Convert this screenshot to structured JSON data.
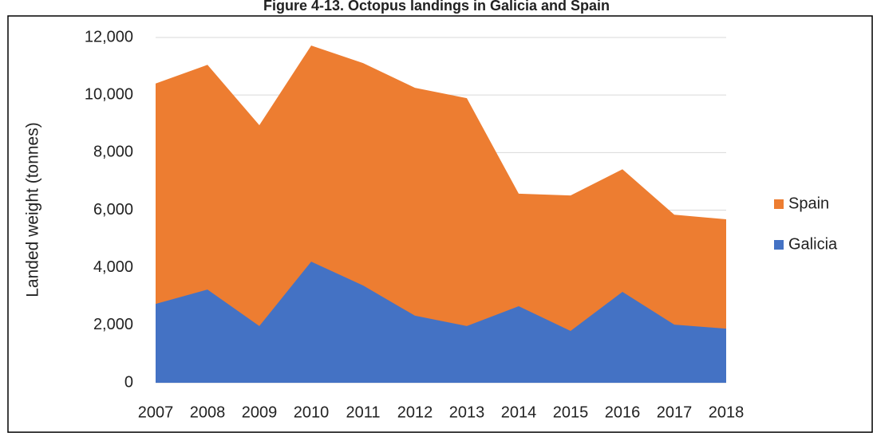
{
  "chart_data": {
    "type": "area",
    "title": "Figure 4-13. Octopus landings in Galicia and Spain",
    "y_label": "Landed weight (tonnes)",
    "categories": [
      "2007",
      "2008",
      "2009",
      "2010",
      "2011",
      "2012",
      "2013",
      "2014",
      "2015",
      "2016",
      "2017",
      "2018"
    ],
    "series": [
      {
        "name": "Spain",
        "color": "#ed7d31",
        "values": [
          10400,
          11050,
          8950,
          11720,
          11110,
          10250,
          9890,
          6570,
          6510,
          7420,
          5840,
          5680
        ]
      },
      {
        "name": "Galicia",
        "color": "#4472c4",
        "values": [
          2740,
          3240,
          1970,
          4210,
          3380,
          2330,
          1970,
          2660,
          1800,
          3160,
          2020,
          1880
        ]
      }
    ],
    "ylim": [
      0,
      12000
    ],
    "yticks": [
      0,
      {
        "value": 2000,
        "label": "2,000"
      },
      {
        "value": 4000,
        "label": "4,000"
      },
      {
        "value": 6000,
        "label": "6,000"
      },
      {
        "value": 8000,
        "label": "8,000"
      },
      {
        "value": 10000,
        "label": "10,000"
      },
      {
        "value": 12000,
        "label": "12,000"
      }
    ],
    "grid": true,
    "legend": "right"
  }
}
